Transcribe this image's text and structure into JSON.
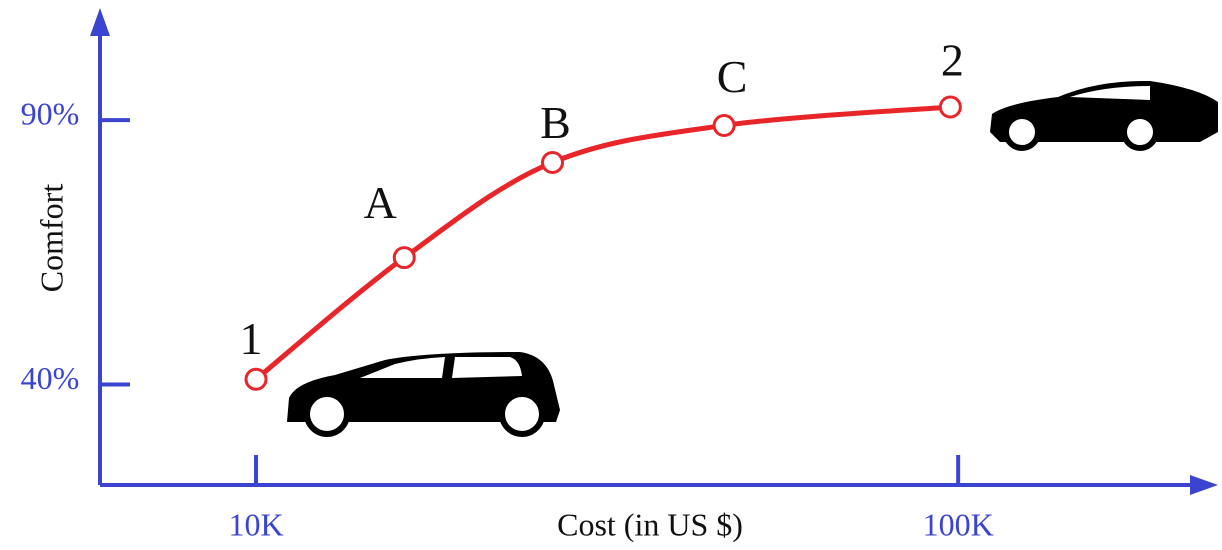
{
  "chart_data": {
    "type": "line",
    "x_label": "Cost (in US $)",
    "y_label": "Comfort",
    "point_labels": [
      "1",
      "A",
      "B",
      "C",
      "2"
    ],
    "x": [
      10000,
      29000,
      48000,
      70000,
      99000
    ],
    "series": [
      {
        "color": "#e8262a",
        "values": [
          41,
          64,
          82,
          89,
          92.5
        ]
      }
    ],
    "xlim": [
      -10000,
      131000
    ],
    "ylim": [
      21,
      108
    ],
    "xticks": [
      {
        "value": 10000,
        "label": "10K"
      },
      {
        "value": 100000,
        "label": "100K"
      }
    ],
    "yticks": [
      {
        "value": 40,
        "label": "40%"
      },
      {
        "value": 90,
        "label": "90%"
      }
    ],
    "axis_color": "#3a44d0"
  }
}
